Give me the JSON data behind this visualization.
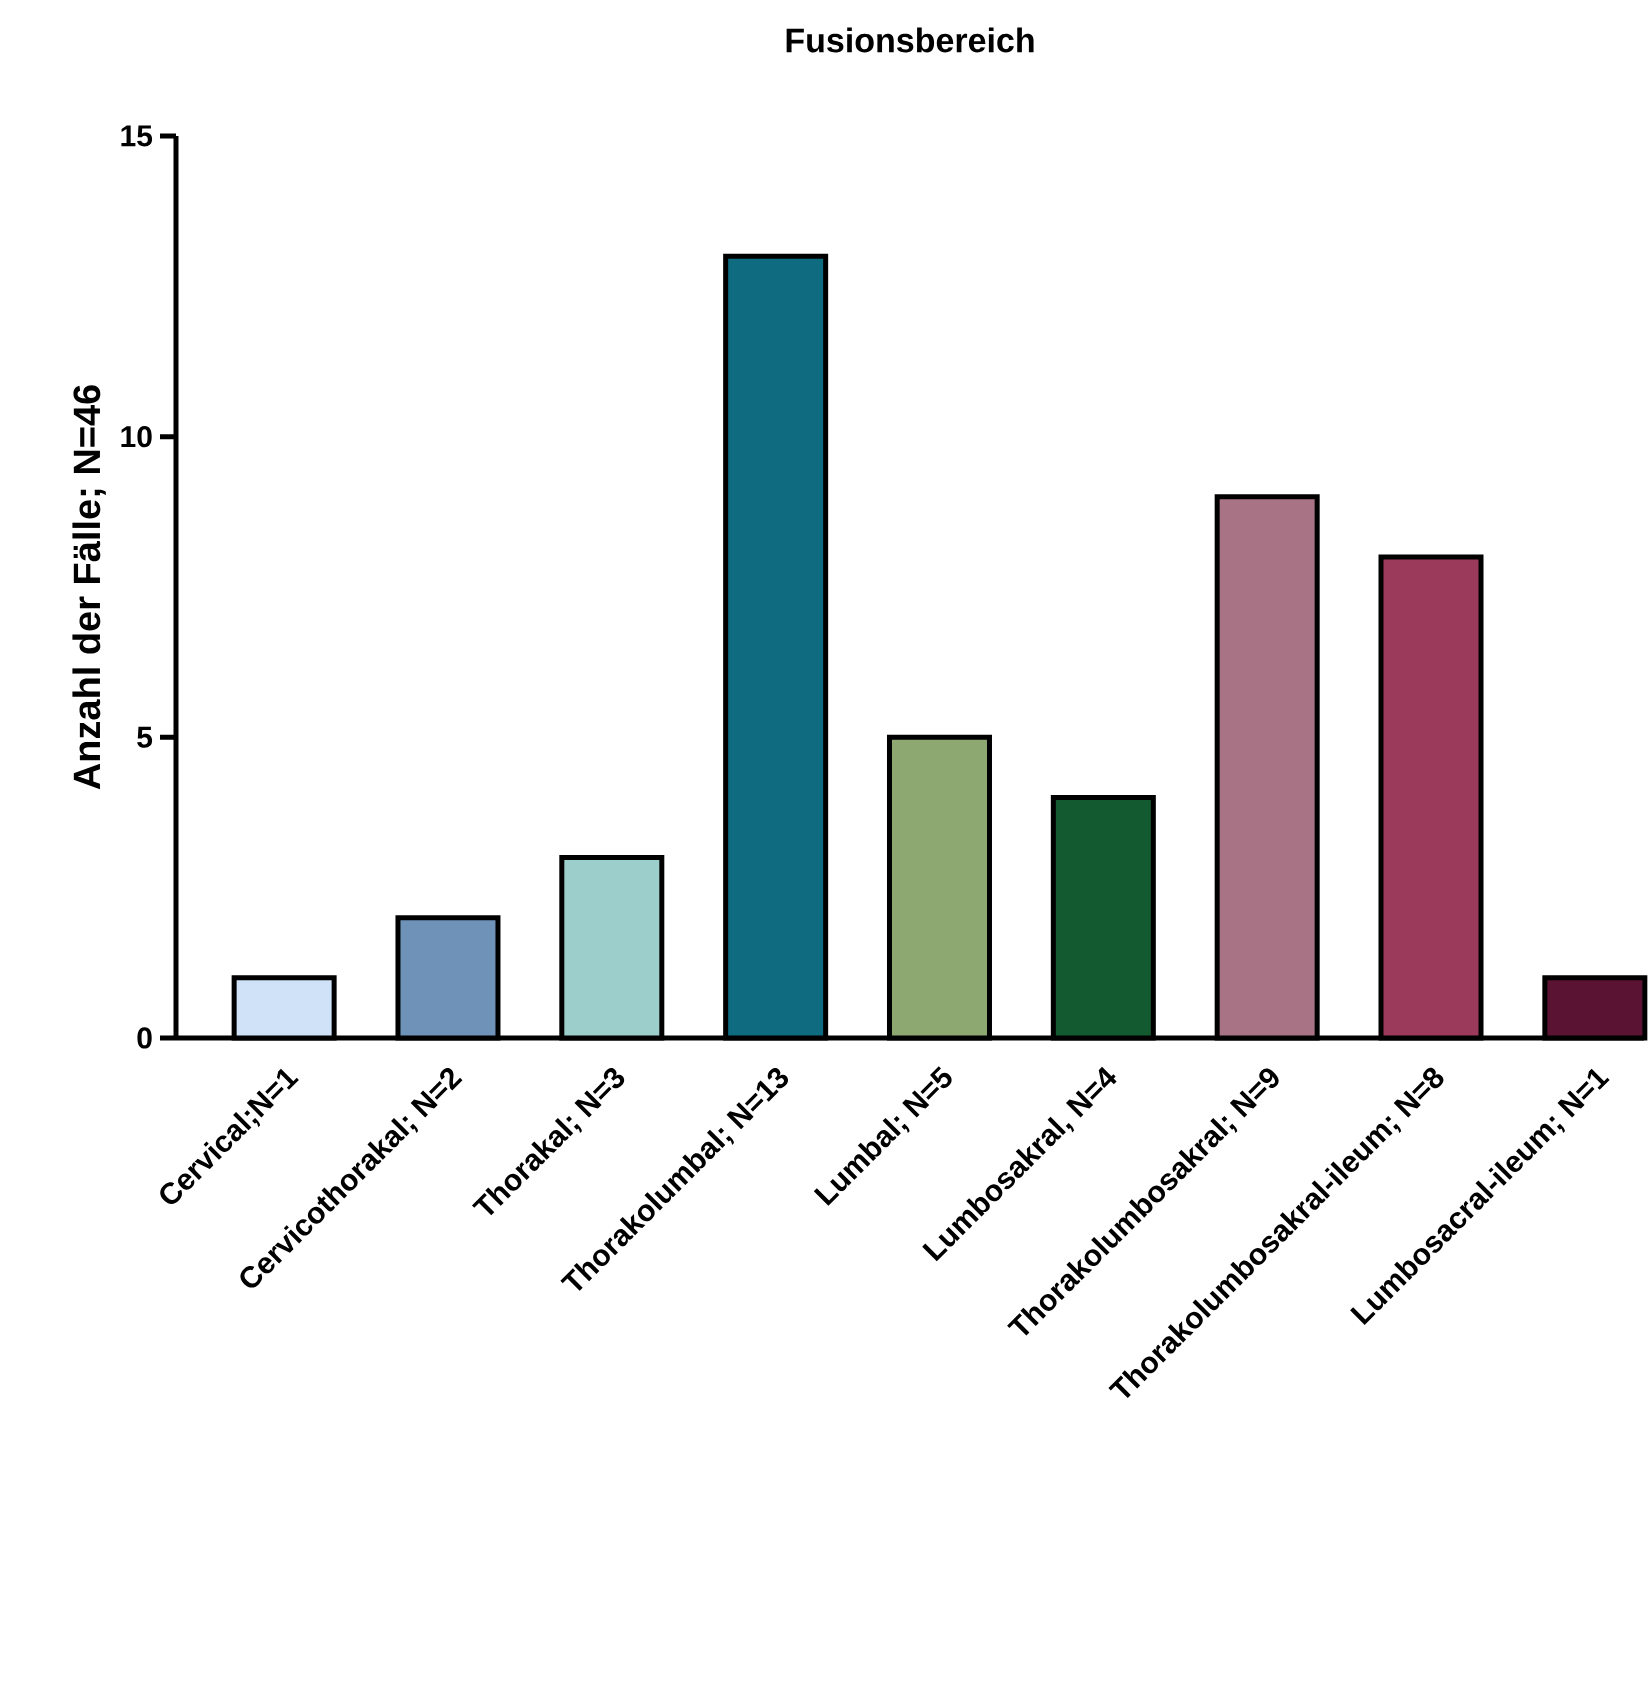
{
  "chart_data": {
    "type": "bar",
    "title": "Fusionsbereich",
    "ylabel": "Anzahl der Fälle; N=46",
    "categories": [
      "Cervical;N=1",
      "Cervicothorakal; N=2",
      "Thorakal; N=3",
      "Thorakolumbal; N=13",
      "Lumbal; N=5",
      "Lumbosakral, N=4",
      "Thorakolumbosakral; N=9",
      "Thorakolumbosakral-ileum; N=8",
      "Lumbosacral-ileum; N=1"
    ],
    "values": [
      1,
      2,
      3,
      13,
      5,
      4,
      9,
      8,
      1
    ],
    "colors": [
      "#cfe2f7",
      "#6f93b8",
      "#9ccfcc",
      "#0e6b80",
      "#8ea872",
      "#145a30",
      "#a87485",
      "#9c3a5c",
      "#5a1333"
    ],
    "ylim": [
      0,
      15
    ],
    "yticks": [
      0,
      5,
      10,
      15
    ]
  }
}
